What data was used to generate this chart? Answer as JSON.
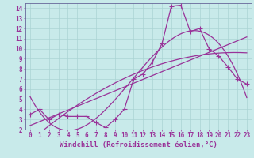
{
  "xlabel": "Windchill (Refroidissement éolien,°C)",
  "background_color": "#c8eaea",
  "grid_color": "#b0d8d8",
  "line_color": "#993399",
  "xlim": [
    -0.5,
    23.5
  ],
  "ylim": [
    2,
    14.5
  ],
  "xticks": [
    0,
    1,
    2,
    3,
    4,
    5,
    6,
    7,
    8,
    9,
    10,
    11,
    12,
    13,
    14,
    15,
    16,
    17,
    18,
    19,
    20,
    21,
    22,
    23
  ],
  "yticks": [
    2,
    3,
    4,
    5,
    6,
    7,
    8,
    9,
    10,
    11,
    12,
    13,
    14
  ],
  "series1_x": [
    0,
    1,
    2,
    3,
    4,
    5,
    6,
    7,
    8,
    9,
    10,
    11,
    12,
    13,
    14,
    15,
    16,
    17,
    18,
    19,
    20,
    21,
    22,
    23
  ],
  "series1_y": [
    3.5,
    4.0,
    3.0,
    3.5,
    3.3,
    3.3,
    3.3,
    2.7,
    2.2,
    3.0,
    4.0,
    7.0,
    7.5,
    8.7,
    10.5,
    14.2,
    14.3,
    11.7,
    12.0,
    10.0,
    9.3,
    8.2,
    7.0,
    6.5
  ],
  "tick_fontsize": 5.5,
  "xlabel_fontsize": 6.5
}
